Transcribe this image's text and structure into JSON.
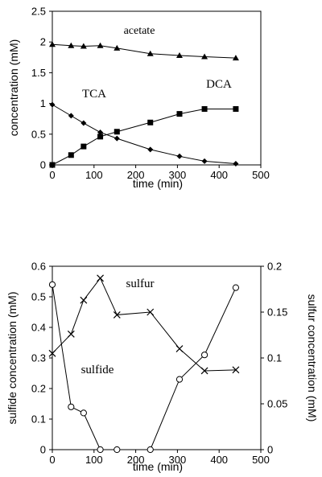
{
  "chart_data": [
    {
      "type": "line",
      "xlabel": "time (min)",
      "ylabel": "concentration (mM)",
      "xlim": [
        0,
        500
      ],
      "ylim": [
        0,
        2.5
      ],
      "x_ticks": [
        "0",
        "100",
        "200",
        "300",
        "400",
        "500"
      ],
      "y_ticks": [
        "0",
        "0.5",
        "1",
        "1.5",
        "2",
        "2.5"
      ],
      "grid": false,
      "series": [
        {
          "name": "acetate",
          "marker": "triangle",
          "x": [
            0,
            45,
            75,
            115,
            155,
            235,
            305,
            365,
            440
          ],
          "y": [
            1.96,
            1.94,
            1.93,
            1.94,
            1.9,
            1.81,
            1.78,
            1.76,
            1.74
          ]
        },
        {
          "name": "TCA",
          "marker": "diamond",
          "x": [
            0,
            45,
            75,
            115,
            155,
            235,
            305,
            365,
            440
          ],
          "y": [
            0.98,
            0.8,
            0.68,
            0.53,
            0.43,
            0.25,
            0.14,
            0.06,
            0.02
          ]
        },
        {
          "name": "DCA",
          "marker": "square",
          "x": [
            0,
            45,
            75,
            115,
            155,
            235,
            305,
            365,
            440
          ],
          "y": [
            0.0,
            0.16,
            0.3,
            0.46,
            0.54,
            0.69,
            0.83,
            0.91,
            0.91
          ]
        }
      ]
    },
    {
      "type": "line",
      "xlabel": "time (min)",
      "ylabel": "sulfide concentration (mM)",
      "y2label": "sulfur concentration (mM)",
      "xlim": [
        0,
        500
      ],
      "ylim": [
        0,
        0.6
      ],
      "y2lim": [
        0,
        0.2
      ],
      "x_ticks": [
        "0",
        "100",
        "200",
        "300",
        "400",
        "500"
      ],
      "y_ticks": [
        "0",
        "0.1",
        "0.2",
        "0.3",
        "0.4",
        "0.5",
        "0.6"
      ],
      "y2_ticks": [
        "0",
        "0.05",
        "0.1",
        "0.15",
        "0.2"
      ],
      "grid": false,
      "series": [
        {
          "name": "sulfide",
          "axis": "left",
          "marker": "circle",
          "x": [
            0,
            45,
            75,
            115,
            155,
            235,
            305,
            365,
            440
          ],
          "y": [
            0.54,
            0.14,
            0.12,
            0.0,
            0.0,
            0.0,
            0.23,
            0.31,
            0.53
          ]
        },
        {
          "name": "sulfur",
          "axis": "right",
          "marker": "x",
          "x": [
            0,
            45,
            75,
            115,
            155,
            235,
            305,
            365,
            440
          ],
          "y": [
            0.105,
            0.126,
            0.163,
            0.187,
            0.147,
            0.15,
            0.11,
            0.086,
            0.087
          ]
        }
      ]
    }
  ]
}
